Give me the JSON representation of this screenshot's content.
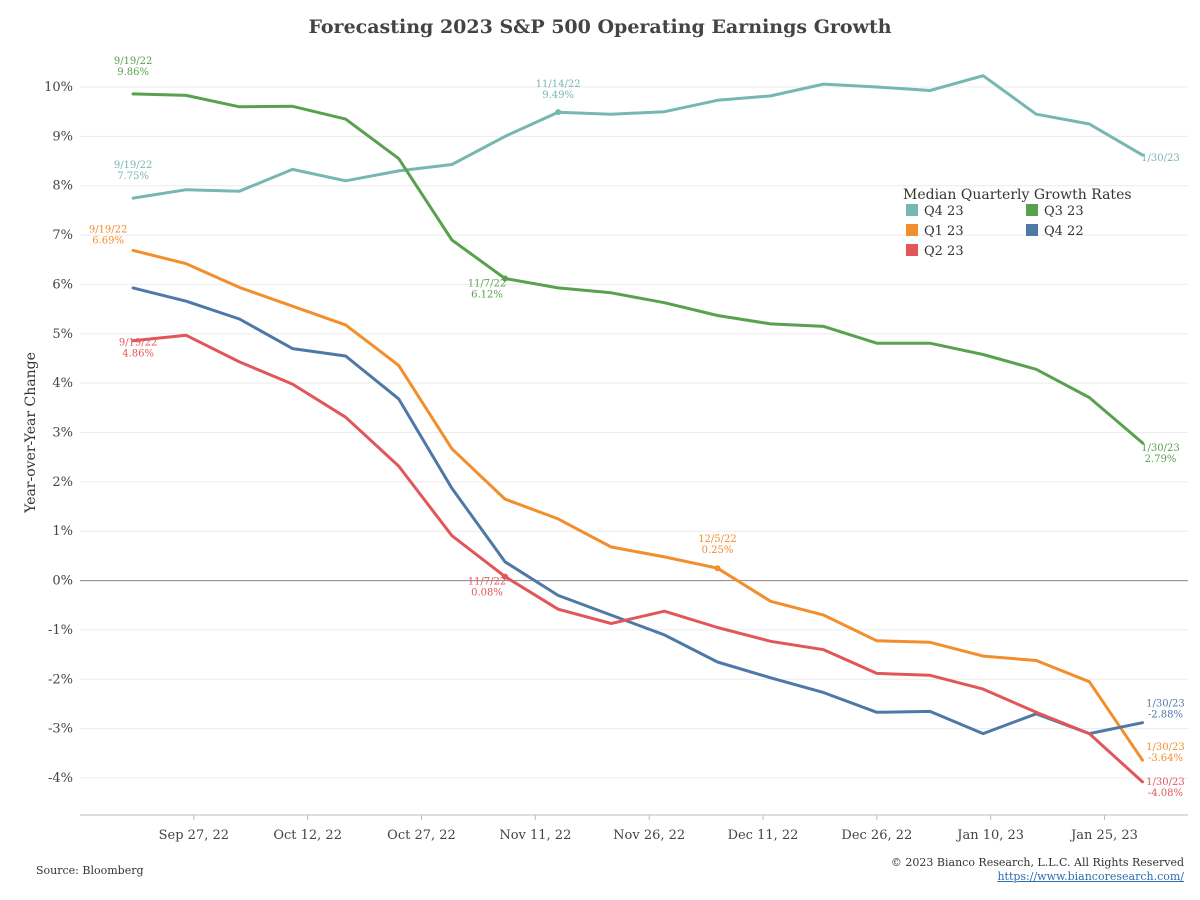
{
  "chart_data": {
    "type": "line",
    "title": "Forecasting 2023 S&P 500 Operating Earnings Growth",
    "ylabel": "Year-over-Year Change",
    "xlabel": "",
    "ylim": [
      -4.75,
      10.75
    ],
    "y_ticks": [
      "-4%",
      "-3%",
      "-2%",
      "-1%",
      "0%",
      "1%",
      "2%",
      "3%",
      "4%",
      "5%",
      "6%",
      "7%",
      "8%",
      "9%",
      "10%"
    ],
    "y_tick_values": [
      -4,
      -3,
      -2,
      -1,
      0,
      1,
      2,
      3,
      4,
      5,
      6,
      7,
      8,
      9,
      10
    ],
    "x_tick_labels": [
      "Sep 27, 22",
      "Oct 12, 22",
      "Oct 27, 22",
      "Nov 11, 22",
      "Nov 26, 22",
      "Dec 11, 22",
      "Dec 26, 22",
      "Jan 10, 23",
      "Jan 25, 23"
    ],
    "x_tick_dates": [
      "2022-09-27",
      "2022-10-12",
      "2022-10-27",
      "2022-11-11",
      "2022-11-26",
      "2022-12-11",
      "2022-12-26",
      "2023-01-10",
      "2023-01-25"
    ],
    "x_range": [
      "2022-09-12",
      "2023-02-05"
    ],
    "x": [
      "2022-09-19",
      "2022-09-26",
      "2022-10-03",
      "2022-10-10",
      "2022-10-17",
      "2022-10-24",
      "2022-10-31",
      "2022-11-07",
      "2022-11-14",
      "2022-11-21",
      "2022-11-28",
      "2022-12-05",
      "2022-12-12",
      "2022-12-19",
      "2022-12-26",
      "2023-01-02",
      "2023-01-09",
      "2023-01-16",
      "2023-01-23",
      "2023-01-30"
    ],
    "series": [
      {
        "name": "Q4 23",
        "color": "#76b7b2",
        "values": [
          7.75,
          7.92,
          7.89,
          8.33,
          8.1,
          8.3,
          8.43,
          9.0,
          9.49,
          9.45,
          9.5,
          9.73,
          9.82,
          10.06,
          10.0,
          9.93,
          10.23,
          9.45,
          9.25,
          8.62
        ]
      },
      {
        "name": "Q3 23",
        "color": "#59a14f",
        "values": [
          9.86,
          9.83,
          9.6,
          9.61,
          9.35,
          8.55,
          6.9,
          6.12,
          5.93,
          5.83,
          5.63,
          5.37,
          5.2,
          5.15,
          4.81,
          4.81,
          4.58,
          4.28,
          3.71,
          2.79
        ]
      },
      {
        "name": "Q1 23",
        "color": "#f28e2b",
        "values": [
          6.69,
          6.42,
          5.94,
          5.56,
          5.18,
          4.36,
          2.67,
          1.65,
          1.25,
          0.68,
          0.48,
          0.25,
          -0.42,
          -0.7,
          -1.22,
          -1.25,
          -1.53,
          -1.62,
          -2.05,
          -3.64
        ]
      },
      {
        "name": "Q4 22",
        "color": "#4e79a7",
        "values": [
          5.93,
          5.66,
          5.3,
          4.7,
          4.55,
          3.68,
          1.87,
          0.38,
          -0.3,
          -0.7,
          -1.1,
          -1.65,
          -1.97,
          -2.27,
          -2.67,
          -2.65,
          -3.1,
          -2.7,
          -3.1,
          -2.88
        ]
      },
      {
        "name": "Q2 23",
        "color": "#e15759",
        "values": [
          4.86,
          4.97,
          4.43,
          3.98,
          3.31,
          2.32,
          0.91,
          0.08,
          -0.58,
          -0.87,
          -0.62,
          -0.95,
          -1.23,
          -1.4,
          -1.88,
          -1.92,
          -2.2,
          -2.67,
          -3.1,
          -4.08
        ]
      }
    ],
    "legend": {
      "title": "Median Quarterly Growth Rates",
      "placement": "right, upper-middle",
      "entries": [
        {
          "name": "Q4 23",
          "color": "#76b7b2"
        },
        {
          "name": "Q3 23",
          "color": "#59a14f"
        },
        {
          "name": "Q1 23",
          "color": "#f28e2b"
        },
        {
          "name": "Q4 22",
          "color": "#4e79a7"
        },
        {
          "name": "Q2 23",
          "color": "#e15759"
        }
      ]
    },
    "annotations": [
      {
        "series": "Q3 23",
        "date": "2022-09-19",
        "label": "9/19/22",
        "value": "9.86%"
      },
      {
        "series": "Q4 23",
        "date": "2022-09-19",
        "label": "9/19/22",
        "value": "7.75%"
      },
      {
        "series": "Q1 23",
        "date": "2022-09-19",
        "label": "9/19/22",
        "value": "6.69%"
      },
      {
        "series": "Q2 23",
        "date": "2022-09-19",
        "label": "9/19/22",
        "value": "4.86%"
      },
      {
        "series": "Q4 23",
        "date": "2022-11-14",
        "label": "11/14/22",
        "value": "9.49%"
      },
      {
        "series": "Q3 23",
        "date": "2022-11-07",
        "label": "11/7/22",
        "value": "6.12%"
      },
      {
        "series": "Q2 23",
        "date": "2022-11-07",
        "label": "11/7/22",
        "value": "0.08%"
      },
      {
        "series": "Q1 23",
        "date": "2022-12-05",
        "label": "12/5/22",
        "value": "0.25%"
      },
      {
        "series": "Q4 23",
        "date": "2023-01-30",
        "label": "1/30/23",
        "value": ""
      },
      {
        "series": "Q3 23",
        "date": "2023-01-30",
        "label": "1/30/23",
        "value": "2.79%"
      },
      {
        "series": "Q4 22",
        "date": "2023-01-30",
        "label": "1/30/23",
        "value": "-2.88%"
      },
      {
        "series": "Q1 23",
        "date": "2023-01-30",
        "label": "1/30/23",
        "value": "-3.64%"
      },
      {
        "series": "Q2 23",
        "date": "2023-01-30",
        "label": "1/30/23",
        "value": "-4.08%"
      }
    ],
    "zero_line": true,
    "grid": "horizontal"
  },
  "footer": {
    "source": "Source: Bloomberg",
    "copyright": "© 2023 Bianco Research, L.L.C. All Rights Reserved",
    "url": "https://www.biancoresearch.com/"
  }
}
